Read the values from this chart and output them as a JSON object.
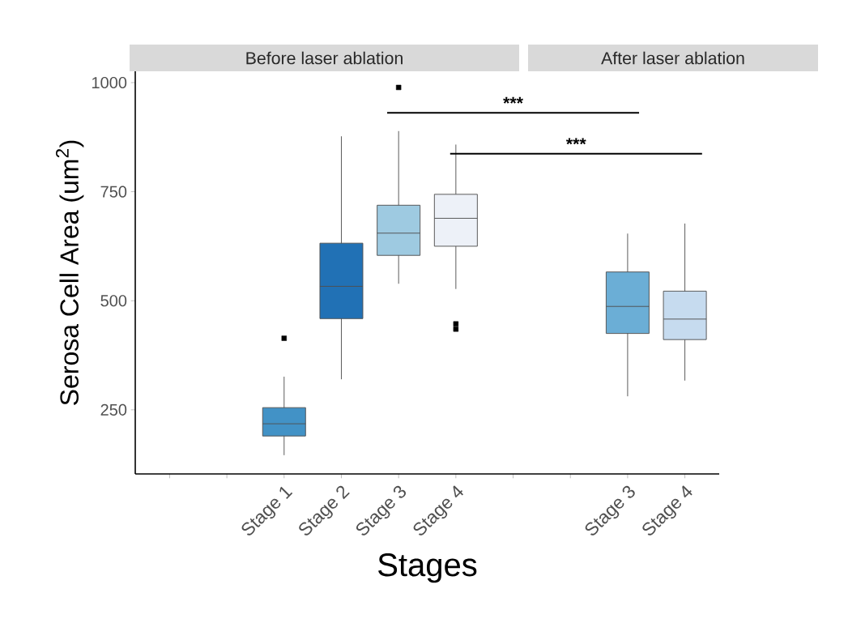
{
  "chart_data": {
    "type": "box",
    "xlabel": "Stages",
    "ylabel": "Serosa Cell Area (um$^{2}$)",
    "categories": [
      null,
      null,
      "Stage 1",
      "Stage 2",
      "Stage 3",
      "Stage 4",
      null,
      null,
      "Stage 3",
      "Stage 4"
    ],
    "colors": [
      "#ffffff",
      "#ffffff",
      "#4292c6",
      "#2171b5",
      "#9ecae1",
      "#edf1f8",
      "#ffffff",
      "#ffffff",
      "#6baed6",
      "#c6dbef"
    ],
    "boxes": [
      null,
      null,
      {
        "low": 146,
        "q1": 190,
        "median": 218,
        "q3": 255,
        "high": 326,
        "outliers": [
          414
        ]
      },
      {
        "low": 320,
        "q1": 459,
        "median": 533,
        "q3": 632,
        "high": 877
      },
      {
        "low": 539,
        "q1": 604,
        "median": 655,
        "q3": 719,
        "high": 889,
        "outliers": [
          989
        ]
      },
      {
        "low": 527,
        "q1": 625,
        "median": 689,
        "q3": 744,
        "high": 858,
        "outliers": [
          447,
          435
        ]
      },
      null,
      null,
      {
        "low": 281,
        "q1": 425,
        "median": 487,
        "q3": 566,
        "high": 654
      },
      {
        "low": 317,
        "q1": 411,
        "median": 458,
        "q3": 522,
        "high": 677
      }
    ],
    "ylim": [
      103,
      1026
    ],
    "yticks": [
      250,
      500,
      750,
      1000
    ],
    "annotations": [
      "Before laser ablation",
      "After laser ablation",
      "***",
      "***"
    ],
    "grid": false
  }
}
